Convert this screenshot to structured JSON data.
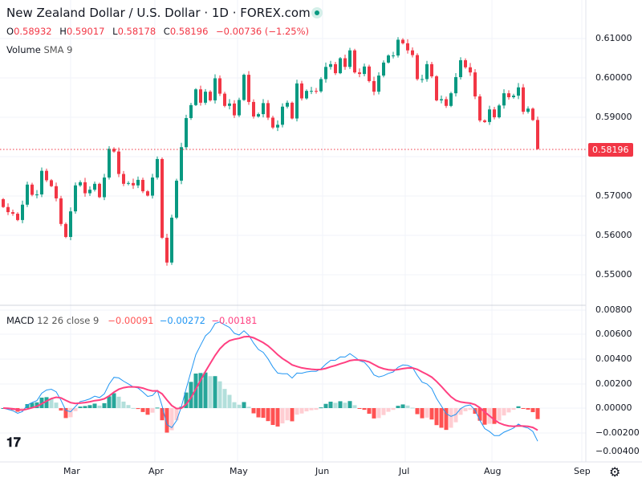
{
  "header": {
    "title": "New Zealand Dollar / U.S. Dollar · 1D · FOREX.com",
    "status_color": "#089981",
    "ohlc": {
      "o_label": "O",
      "o": "0.58932",
      "h_label": "H",
      "h": "0.59017",
      "l_label": "L",
      "l": "0.58178",
      "c_label": "C",
      "c": "0.58196",
      "change": "−0.00736 (−1.25%)"
    },
    "volume_label": "Volume",
    "volume_params": "SMA 9"
  },
  "macd_legend": {
    "label": "MACD",
    "params": "12 26 close 9",
    "histogram": "−0.00091",
    "macd": "−0.00272",
    "signal": "−0.00181"
  },
  "price_axis": [
    "0.61000",
    "0.60000",
    "0.59000",
    "0.57000",
    "0.56000",
    "0.55000"
  ],
  "last_price": "0.58196",
  "macd_axis": [
    "0.00800",
    "0.00600",
    "0.00400",
    "0.00200",
    "0.00000",
    "−0.00200",
    "−0.00400"
  ],
  "time_axis": [
    "Mar",
    "Apr",
    "May",
    "Jun",
    "Jul",
    "Aug",
    "Sep"
  ],
  "logo": "TV",
  "settings_icon": "gear-icon",
  "colors": {
    "up": "#089981",
    "down": "#F23645",
    "macd": "#2196F3",
    "signal": "#FF4081"
  },
  "chart_data": {
    "type": "candlestick",
    "title": "New Zealand Dollar / U.S. Dollar · 1D · FOREX.com",
    "ylim": [
      0.545,
      0.6135
    ],
    "first_open": 0.5692,
    "closes": [
      0.5672,
      0.5659,
      0.5655,
      0.5639,
      0.5678,
      0.5729,
      0.5703,
      0.5704,
      0.5764,
      0.574,
      0.5725,
      0.5694,
      0.5629,
      0.5596,
      0.5661,
      0.5727,
      0.5735,
      0.5707,
      0.5716,
      0.5731,
      0.5697,
      0.5747,
      0.582,
      0.5813,
      0.5756,
      0.5731,
      0.5733,
      0.5727,
      0.5741,
      0.5712,
      0.5701,
      0.5747,
      0.5794,
      0.5594,
      0.5531,
      0.5645,
      0.5739,
      0.5824,
      0.5898,
      0.5931,
      0.5971,
      0.5937,
      0.5965,
      0.5943,
      0.5999,
      0.596,
      0.5929,
      0.5935,
      0.5905,
      0.5944,
      0.6008,
      0.5939,
      0.5902,
      0.5908,
      0.5936,
      0.5899,
      0.5874,
      0.5881,
      0.5927,
      0.5937,
      0.5897,
      0.5986,
      0.5948,
      0.5967,
      0.5967,
      0.5966,
      0.5997,
      0.6028,
      0.6035,
      0.6012,
      0.605,
      0.6028,
      0.607,
      0.6014,
      0.601,
      0.6029,
      0.5992,
      0.5965,
      0.6006,
      0.6039,
      0.6057,
      0.6057,
      0.6097,
      0.6088,
      0.607,
      0.6058,
      0.5997,
      0.5997,
      0.6035,
      0.6004,
      0.5943,
      0.5946,
      0.5929,
      0.5961,
      0.6002,
      0.6045,
      0.6027,
      0.6014,
      0.5953,
      0.5892,
      0.5888,
      0.592,
      0.59,
      0.593,
      0.5961,
      0.5951,
      0.5955,
      0.5976,
      0.5914,
      0.5922,
      0.5893,
      0.58196
    ],
    "last_candle": {
      "open": 0.58932,
      "high": 0.59017,
      "low": 0.58178,
      "close": 0.58196
    },
    "macd": {
      "fast": 12,
      "slow": 26,
      "signal": 9,
      "ylim": [
        -0.0042,
        0.0082
      ]
    },
    "x_ticks": [
      "Mar",
      "Apr",
      "May",
      "Jun",
      "Jul",
      "Aug",
      "Sep"
    ]
  }
}
